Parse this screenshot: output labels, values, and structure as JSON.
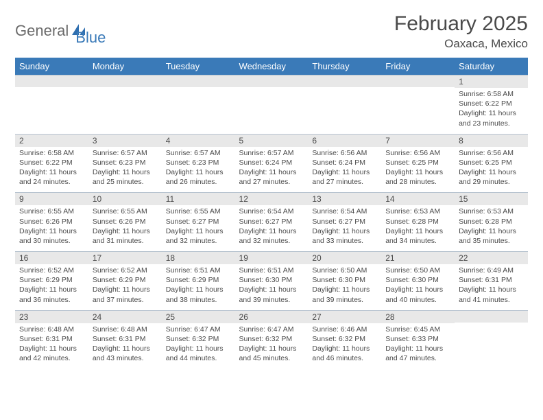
{
  "logo": {
    "text_general": "General",
    "text_blue": "Blue",
    "accent_color": "#2f6fb0"
  },
  "title": "February 2025",
  "location": "Oaxaca, Mexico",
  "colors": {
    "header_bg": "#3a7ab8",
    "header_text": "#ffffff",
    "daynum_bg": "#e8e8e8",
    "body_text": "#4a4a4a",
    "grid_line": "#b8c4d0",
    "page_bg": "#ffffff"
  },
  "typography": {
    "title_fontsize": 30,
    "location_fontsize": 17,
    "dow_fontsize": 13,
    "daynum_fontsize": 12,
    "daydata_fontsize": 10.5
  },
  "days_of_week": [
    "Sunday",
    "Monday",
    "Tuesday",
    "Wednesday",
    "Thursday",
    "Friday",
    "Saturday"
  ],
  "weeks": [
    [
      null,
      null,
      null,
      null,
      null,
      null,
      {
        "n": "1",
        "sunrise": "Sunrise: 6:58 AM",
        "sunset": "Sunset: 6:22 PM",
        "daylight": "Daylight: 11 hours and 23 minutes."
      }
    ],
    [
      {
        "n": "2",
        "sunrise": "Sunrise: 6:58 AM",
        "sunset": "Sunset: 6:22 PM",
        "daylight": "Daylight: 11 hours and 24 minutes."
      },
      {
        "n": "3",
        "sunrise": "Sunrise: 6:57 AM",
        "sunset": "Sunset: 6:23 PM",
        "daylight": "Daylight: 11 hours and 25 minutes."
      },
      {
        "n": "4",
        "sunrise": "Sunrise: 6:57 AM",
        "sunset": "Sunset: 6:23 PM",
        "daylight": "Daylight: 11 hours and 26 minutes."
      },
      {
        "n": "5",
        "sunrise": "Sunrise: 6:57 AM",
        "sunset": "Sunset: 6:24 PM",
        "daylight": "Daylight: 11 hours and 27 minutes."
      },
      {
        "n": "6",
        "sunrise": "Sunrise: 6:56 AM",
        "sunset": "Sunset: 6:24 PM",
        "daylight": "Daylight: 11 hours and 27 minutes."
      },
      {
        "n": "7",
        "sunrise": "Sunrise: 6:56 AM",
        "sunset": "Sunset: 6:25 PM",
        "daylight": "Daylight: 11 hours and 28 minutes."
      },
      {
        "n": "8",
        "sunrise": "Sunrise: 6:56 AM",
        "sunset": "Sunset: 6:25 PM",
        "daylight": "Daylight: 11 hours and 29 minutes."
      }
    ],
    [
      {
        "n": "9",
        "sunrise": "Sunrise: 6:55 AM",
        "sunset": "Sunset: 6:26 PM",
        "daylight": "Daylight: 11 hours and 30 minutes."
      },
      {
        "n": "10",
        "sunrise": "Sunrise: 6:55 AM",
        "sunset": "Sunset: 6:26 PM",
        "daylight": "Daylight: 11 hours and 31 minutes."
      },
      {
        "n": "11",
        "sunrise": "Sunrise: 6:55 AM",
        "sunset": "Sunset: 6:27 PM",
        "daylight": "Daylight: 11 hours and 32 minutes."
      },
      {
        "n": "12",
        "sunrise": "Sunrise: 6:54 AM",
        "sunset": "Sunset: 6:27 PM",
        "daylight": "Daylight: 11 hours and 32 minutes."
      },
      {
        "n": "13",
        "sunrise": "Sunrise: 6:54 AM",
        "sunset": "Sunset: 6:27 PM",
        "daylight": "Daylight: 11 hours and 33 minutes."
      },
      {
        "n": "14",
        "sunrise": "Sunrise: 6:53 AM",
        "sunset": "Sunset: 6:28 PM",
        "daylight": "Daylight: 11 hours and 34 minutes."
      },
      {
        "n": "15",
        "sunrise": "Sunrise: 6:53 AM",
        "sunset": "Sunset: 6:28 PM",
        "daylight": "Daylight: 11 hours and 35 minutes."
      }
    ],
    [
      {
        "n": "16",
        "sunrise": "Sunrise: 6:52 AM",
        "sunset": "Sunset: 6:29 PM",
        "daylight": "Daylight: 11 hours and 36 minutes."
      },
      {
        "n": "17",
        "sunrise": "Sunrise: 6:52 AM",
        "sunset": "Sunset: 6:29 PM",
        "daylight": "Daylight: 11 hours and 37 minutes."
      },
      {
        "n": "18",
        "sunrise": "Sunrise: 6:51 AM",
        "sunset": "Sunset: 6:29 PM",
        "daylight": "Daylight: 11 hours and 38 minutes."
      },
      {
        "n": "19",
        "sunrise": "Sunrise: 6:51 AM",
        "sunset": "Sunset: 6:30 PM",
        "daylight": "Daylight: 11 hours and 39 minutes."
      },
      {
        "n": "20",
        "sunrise": "Sunrise: 6:50 AM",
        "sunset": "Sunset: 6:30 PM",
        "daylight": "Daylight: 11 hours and 39 minutes."
      },
      {
        "n": "21",
        "sunrise": "Sunrise: 6:50 AM",
        "sunset": "Sunset: 6:30 PM",
        "daylight": "Daylight: 11 hours and 40 minutes."
      },
      {
        "n": "22",
        "sunrise": "Sunrise: 6:49 AM",
        "sunset": "Sunset: 6:31 PM",
        "daylight": "Daylight: 11 hours and 41 minutes."
      }
    ],
    [
      {
        "n": "23",
        "sunrise": "Sunrise: 6:48 AM",
        "sunset": "Sunset: 6:31 PM",
        "daylight": "Daylight: 11 hours and 42 minutes."
      },
      {
        "n": "24",
        "sunrise": "Sunrise: 6:48 AM",
        "sunset": "Sunset: 6:31 PM",
        "daylight": "Daylight: 11 hours and 43 minutes."
      },
      {
        "n": "25",
        "sunrise": "Sunrise: 6:47 AM",
        "sunset": "Sunset: 6:32 PM",
        "daylight": "Daylight: 11 hours and 44 minutes."
      },
      {
        "n": "26",
        "sunrise": "Sunrise: 6:47 AM",
        "sunset": "Sunset: 6:32 PM",
        "daylight": "Daylight: 11 hours and 45 minutes."
      },
      {
        "n": "27",
        "sunrise": "Sunrise: 6:46 AM",
        "sunset": "Sunset: 6:32 PM",
        "daylight": "Daylight: 11 hours and 46 minutes."
      },
      {
        "n": "28",
        "sunrise": "Sunrise: 6:45 AM",
        "sunset": "Sunset: 6:33 PM",
        "daylight": "Daylight: 11 hours and 47 minutes."
      },
      null
    ]
  ]
}
